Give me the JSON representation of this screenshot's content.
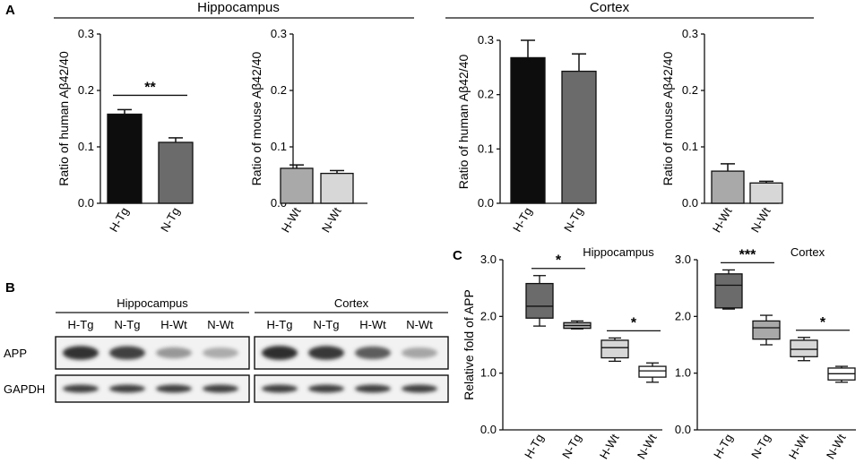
{
  "panels": {
    "a": "A",
    "b": "B",
    "c": "C"
  },
  "section_titles": {
    "hippocampus": "Hippocampus",
    "cortex": "Cortex"
  },
  "colors": {
    "black": "#0d0d0d",
    "dark_gray": "#6b6b6b",
    "mid_gray": "#a9a9a9",
    "light_gray": "#d7d7d7",
    "white": "#ffffff"
  },
  "chart_data": [
    {
      "id": "a1",
      "type": "bar",
      "panel": "A",
      "region": "Hippocampus",
      "ylabel": "Ratio of human Aβ42/40",
      "yticks": [
        "0.0",
        "0.1",
        "0.2",
        "0.3"
      ],
      "ylim": [
        0,
        0.3
      ],
      "categories": [
        "H-Tg",
        "N-Tg"
      ],
      "values": [
        0.158,
        0.108
      ],
      "errors": [
        0.008,
        0.008
      ],
      "colors": [
        "#0d0d0d",
        "#6b6b6b"
      ],
      "significance": [
        {
          "from": 0,
          "to": 1,
          "label": "**"
        }
      ]
    },
    {
      "id": "a2",
      "type": "bar",
      "panel": "A",
      "region": "Hippocampus",
      "ylabel": "Ratio of mouse Aβ42/40",
      "yticks": [
        "0.0",
        "0.1",
        "0.2",
        "0.3"
      ],
      "ylim": [
        0,
        0.3
      ],
      "categories": [
        "H-Wt",
        "N-Wt"
      ],
      "values": [
        0.062,
        0.053
      ],
      "errors": [
        0.006,
        0.005
      ],
      "colors": [
        "#a9a9a9",
        "#d7d7d7"
      ],
      "significance": []
    },
    {
      "id": "a3",
      "type": "bar",
      "panel": "A",
      "region": "Cortex",
      "ylabel": "Ratio of human Aβ42/40",
      "yticks": [
        "0.0",
        "0.1",
        "0.2",
        "0.3"
      ],
      "ylim": [
        0,
        0.3
      ],
      "categories": [
        "H-Tg",
        "N-Tg"
      ],
      "values": [
        0.268,
        0.243
      ],
      "errors": [
        0.032,
        0.032
      ],
      "colors": [
        "#0d0d0d",
        "#6b6b6b"
      ],
      "significance": []
    },
    {
      "id": "a4",
      "type": "bar",
      "panel": "A",
      "region": "Cortex",
      "ylabel": "Ratio of mouse Aβ42/40",
      "yticks": [
        "0.0",
        "0.1",
        "0.2",
        "0.3"
      ],
      "ylim": [
        0,
        0.3
      ],
      "categories": [
        "H-Wt",
        "N-Wt"
      ],
      "values": [
        0.057,
        0.036
      ],
      "errors": [
        0.013,
        0.003
      ],
      "colors": [
        "#a9a9a9",
        "#d7d7d7"
      ],
      "significance": []
    },
    {
      "id": "c1",
      "type": "box",
      "panel": "C",
      "title": "Hippocampus",
      "ylabel": "Relative fold of APP",
      "yticks": [
        "0.0",
        "1.0",
        "2.0",
        "3.0"
      ],
      "ylim": [
        0,
        3
      ],
      "categories": [
        "H-Tg",
        "N-Tg",
        "H-Wt",
        "N-Wt"
      ],
      "boxes": [
        {
          "min": 1.83,
          "q1": 1.97,
          "median": 2.18,
          "q3": 2.58,
          "max": 2.72
        },
        {
          "min": 1.78,
          "q1": 1.79,
          "median": 1.84,
          "q3": 1.89,
          "max": 1.92
        },
        {
          "min": 1.21,
          "q1": 1.27,
          "median": 1.45,
          "q3": 1.58,
          "max": 1.62
        },
        {
          "min": 0.84,
          "q1": 0.93,
          "median": 1.04,
          "q3": 1.12,
          "max": 1.18
        }
      ],
      "colors": [
        "#6b6b6b",
        "#a9a9a9",
        "#d7d7d7",
        "#ffffff"
      ],
      "significance": [
        {
          "from": 0,
          "to": 1,
          "label": "*"
        },
        {
          "from": 2,
          "to": 3,
          "label": "*"
        }
      ]
    },
    {
      "id": "c2",
      "type": "box",
      "panel": "C",
      "title": "Cortex",
      "ylabel": "",
      "yticks": [
        "0.0",
        "1.0",
        "2.0",
        "3.0"
      ],
      "ylim": [
        0,
        3
      ],
      "categories": [
        "H-Tg",
        "N-Tg",
        "H-Wt",
        "N-Wt"
      ],
      "boxes": [
        {
          "min": 2.13,
          "q1": 2.15,
          "median": 2.55,
          "q3": 2.75,
          "max": 2.82
        },
        {
          "min": 1.5,
          "q1": 1.6,
          "median": 1.8,
          "q3": 1.92,
          "max": 2.02
        },
        {
          "min": 1.22,
          "q1": 1.29,
          "median": 1.42,
          "q3": 1.58,
          "max": 1.63
        },
        {
          "min": 0.84,
          "q1": 0.88,
          "median": 0.99,
          "q3": 1.09,
          "max": 1.12
        }
      ],
      "colors": [
        "#6b6b6b",
        "#a9a9a9",
        "#d7d7d7",
        "#ffffff"
      ],
      "significance": [
        {
          "from": 0,
          "to": 1,
          "label": "***"
        },
        {
          "from": 2,
          "to": 3,
          "label": "*"
        }
      ]
    }
  ],
  "blot": {
    "region_titles": [
      "Hippocampus",
      "Cortex"
    ],
    "lanes": [
      "H-Tg",
      "N-Tg",
      "H-Wt",
      "N-Wt",
      "H-Tg",
      "N-Tg",
      "H-Wt",
      "N-Wt"
    ],
    "rows": [
      {
        "label": "APP",
        "intensity": [
          0.92,
          0.85,
          0.42,
          0.32,
          0.95,
          0.9,
          0.72,
          0.35
        ]
      },
      {
        "label": "GAPDH",
        "intensity": [
          0.85,
          0.85,
          0.85,
          0.85,
          0.85,
          0.85,
          0.85,
          0.85
        ]
      }
    ]
  }
}
